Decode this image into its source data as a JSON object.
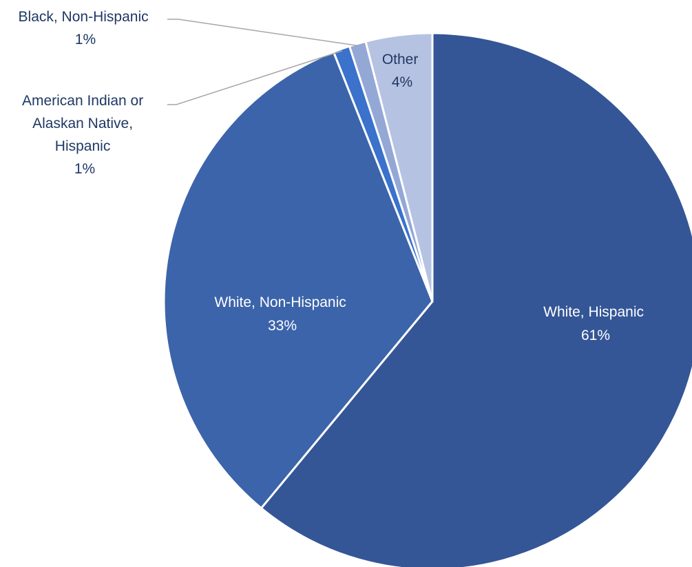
{
  "chart_data": {
    "type": "pie",
    "slices": [
      {
        "label": "White, Hispanic",
        "value": 61,
        "display": "61%",
        "color": "#345696",
        "label_color": "#ffffff"
      },
      {
        "label": "White, Non-Hispanic",
        "value": 33,
        "display": "33%",
        "color": "#3c64aa",
        "label_color": "#ffffff"
      },
      {
        "label": "American Indian or Alaskan Native, Hispanic",
        "value": 1,
        "display": "1%",
        "color": "#3a72cc",
        "label_color": "#1f3864"
      },
      {
        "label": "Black, Non-Hispanic",
        "value": 1,
        "display": "1%",
        "color": "#94a8d6",
        "label_color": "#1f3864"
      },
      {
        "label": "Other",
        "value": 4,
        "display": "4%",
        "color": "#b6c2e2",
        "label_color": "#1f3864"
      }
    ],
    "start_at": "top",
    "direction": "clockwise",
    "slice_border_color": "#ffffff",
    "leader_line_color": "#a6a6a6",
    "legend": "none"
  }
}
